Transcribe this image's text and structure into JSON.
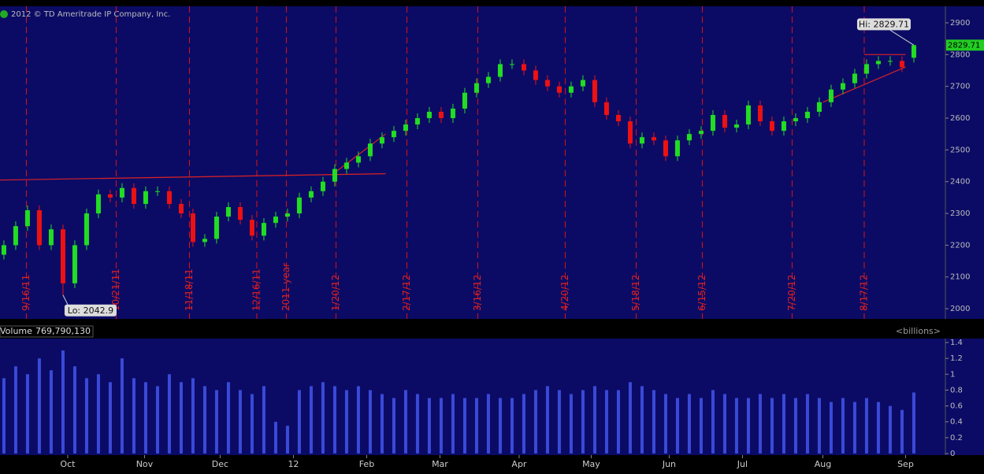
{
  "header": {
    "copyright": "2012 © TD Ameritrade IP Company, Inc."
  },
  "chart_data": [
    {
      "type": "candlestick",
      "x": [
        0,
        1,
        2,
        3,
        4,
        5,
        6,
        7,
        8,
        9,
        10,
        11,
        12,
        13,
        14,
        15,
        16,
        17,
        18,
        19,
        20,
        21,
        22,
        23,
        24,
        25,
        26,
        27,
        28,
        29,
        30,
        31,
        32,
        33,
        34,
        35,
        36,
        37,
        38,
        39,
        40,
        41,
        42,
        43,
        44,
        45,
        46,
        47,
        48,
        49,
        50,
        51,
        52,
        53,
        54,
        55,
        56,
        57,
        58,
        59,
        60,
        61,
        62,
        63,
        64,
        65,
        66,
        67,
        68,
        69,
        70,
        71,
        72,
        73,
        74,
        75,
        76,
        77
      ],
      "open": [
        2170,
        2200,
        2260,
        2310,
        2200,
        2250,
        2080,
        2200,
        2300,
        2360,
        2350,
        2380,
        2330,
        2370,
        2370,
        2330,
        2300,
        2210,
        2220,
        2290,
        2320,
        2280,
        2230,
        2270,
        2290,
        2300,
        2350,
        2370,
        2400,
        2440,
        2460,
        2480,
        2520,
        2540,
        2560,
        2580,
        2600,
        2620,
        2600,
        2630,
        2680,
        2710,
        2730,
        2770,
        2770,
        2750,
        2720,
        2700,
        2680,
        2700,
        2720,
        2650,
        2610,
        2590,
        2520,
        2540,
        2530,
        2480,
        2530,
        2550,
        2560,
        2610,
        2570,
        2580,
        2640,
        2590,
        2560,
        2590,
        2600,
        2620,
        2650,
        2690,
        2710,
        2740,
        2770,
        2780,
        2780,
        2790
      ],
      "high": [
        2215,
        2275,
        2325,
        2325,
        2265,
        2265,
        2215,
        2315,
        2375,
        2375,
        2395,
        2395,
        2385,
        2385,
        2385,
        2345,
        2315,
        2235,
        2305,
        2335,
        2335,
        2295,
        2285,
        2305,
        2315,
        2365,
        2385,
        2415,
        2455,
        2475,
        2495,
        2535,
        2555,
        2575,
        2595,
        2615,
        2635,
        2635,
        2645,
        2695,
        2725,
        2745,
        2785,
        2785,
        2785,
        2765,
        2735,
        2715,
        2715,
        2735,
        2735,
        2665,
        2625,
        2605,
        2555,
        2555,
        2545,
        2545,
        2565,
        2575,
        2625,
        2625,
        2595,
        2655,
        2655,
        2605,
        2605,
        2615,
        2635,
        2665,
        2705,
        2725,
        2755,
        2785,
        2795,
        2795,
        2795,
        2829.71
      ],
      "low": [
        2155,
        2185,
        2245,
        2185,
        2185,
        2042.9,
        2065,
        2185,
        2285,
        2335,
        2335,
        2315,
        2315,
        2355,
        2315,
        2285,
        2195,
        2195,
        2205,
        2275,
        2265,
        2215,
        2215,
        2255,
        2275,
        2285,
        2335,
        2355,
        2385,
        2425,
        2445,
        2465,
        2505,
        2525,
        2545,
        2565,
        2585,
        2585,
        2585,
        2615,
        2665,
        2695,
        2715,
        2755,
        2735,
        2705,
        2685,
        2665,
        2665,
        2685,
        2635,
        2595,
        2575,
        2505,
        2505,
        2515,
        2465,
        2465,
        2515,
        2535,
        2545,
        2555,
        2555,
        2565,
        2575,
        2545,
        2545,
        2575,
        2585,
        2605,
        2635,
        2675,
        2695,
        2725,
        2755,
        2765,
        2745,
        2775
      ],
      "close": [
        2200,
        2260,
        2310,
        2200,
        2250,
        2080,
        2200,
        2300,
        2360,
        2350,
        2380,
        2330,
        2370,
        2370,
        2330,
        2300,
        2210,
        2220,
        2290,
        2320,
        2280,
        2230,
        2270,
        2290,
        2300,
        2350,
        2370,
        2400,
        2440,
        2460,
        2480,
        2520,
        2540,
        2560,
        2580,
        2600,
        2620,
        2600,
        2630,
        2680,
        2710,
        2730,
        2770,
        2770,
        2750,
        2720,
        2700,
        2680,
        2700,
        2720,
        2650,
        2610,
        2590,
        2520,
        2540,
        2530,
        2480,
        2530,
        2550,
        2560,
        2610,
        2570,
        2580,
        2640,
        2590,
        2560,
        2590,
        2600,
        2620,
        2650,
        2690,
        2710,
        2740,
        2770,
        2780,
        2780,
        2760,
        2829.71
      ],
      "up_color": "#22dd22",
      "down_color": "#ee1111",
      "xlim": [
        -0.33,
        79.67
      ],
      "ylim": [
        1968,
        2952
      ],
      "yticks": [
        2000,
        2100,
        2200,
        2300,
        2400,
        2500,
        2600,
        2700,
        2800,
        2900
      ],
      "events": [
        {
          "x": 1.9,
          "label": "9/16/11"
        },
        {
          "x": 9.5,
          "label": "10/21/11"
        },
        {
          "x": 15.7,
          "label": "11/18/11"
        },
        {
          "x": 21.4,
          "label": "12/16/11"
        },
        {
          "x": 23.9,
          "label": "2011 year"
        },
        {
          "x": 28.1,
          "label": "1/20/12"
        },
        {
          "x": 34.1,
          "label": "2/17/12"
        },
        {
          "x": 40.1,
          "label": "3/16/12"
        },
        {
          "x": 47.5,
          "label": "4/20/12"
        },
        {
          "x": 53.5,
          "label": "5/18/12"
        },
        {
          "x": 59.1,
          "label": "6/15/12"
        },
        {
          "x": 66.7,
          "label": "7/20/12"
        },
        {
          "x": 72.8,
          "label": "8/17/12"
        }
      ],
      "trendlines": [
        {
          "x": [
            -0.33,
            32.3
          ],
          "y": [
            2405,
            2425
          ]
        },
        {
          "x": [
            27.7,
            32.3
          ],
          "y": [
            2420,
            2550
          ]
        },
        {
          "x": [
            69.3,
            76.3
          ],
          "y": [
            2650,
            2761
          ]
        },
        {
          "x": [
            72.8,
            76.3
          ],
          "y": [
            2800,
            2800
          ]
        }
      ],
      "hi_label": "Hi: 2829.71",
      "lo_label": "Lo: 2042.9",
      "last_price_label": "2829.71"
    },
    {
      "type": "bar",
      "name": "Volume",
      "readout": "769,790,130",
      "unit_label": "<billions>",
      "color": "#3a4ad8",
      "x": [
        0,
        1,
        2,
        3,
        4,
        5,
        6,
        7,
        8,
        9,
        10,
        11,
        12,
        13,
        14,
        15,
        16,
        17,
        18,
        19,
        20,
        21,
        22,
        23,
        24,
        25,
        26,
        27,
        28,
        29,
        30,
        31,
        32,
        33,
        34,
        35,
        36,
        37,
        38,
        39,
        40,
        41,
        42,
        43,
        44,
        45,
        46,
        47,
        48,
        49,
        50,
        51,
        52,
        53,
        54,
        55,
        56,
        57,
        58,
        59,
        60,
        61,
        62,
        63,
        64,
        65,
        66,
        67,
        68,
        69,
        70,
        71,
        72,
        73,
        74,
        75,
        76,
        77
      ],
      "values": [
        0.95,
        1.1,
        1.0,
        1.2,
        1.05,
        1.3,
        1.1,
        0.95,
        1.0,
        0.9,
        1.2,
        0.95,
        0.9,
        0.85,
        1.0,
        0.9,
        0.95,
        0.85,
        0.8,
        0.9,
        0.8,
        0.75,
        0.85,
        0.4,
        0.35,
        0.8,
        0.85,
        0.9,
        0.85,
        0.8,
        0.85,
        0.8,
        0.75,
        0.7,
        0.8,
        0.75,
        0.7,
        0.7,
        0.75,
        0.7,
        0.7,
        0.75,
        0.7,
        0.7,
        0.75,
        0.8,
        0.85,
        0.8,
        0.75,
        0.8,
        0.85,
        0.8,
        0.8,
        0.9,
        0.85,
        0.8,
        0.75,
        0.7,
        0.75,
        0.7,
        0.8,
        0.75,
        0.7,
        0.7,
        0.75,
        0.7,
        0.75,
        0.7,
        0.75,
        0.7,
        0.65,
        0.7,
        0.65,
        0.7,
        0.65,
        0.6,
        0.55,
        0.76979013
      ],
      "xlim": [
        -0.33,
        79.67
      ],
      "ylim": [
        -0.02,
        1.45
      ],
      "yticks": [
        0,
        0.2,
        0.4,
        0.6,
        0.8,
        1,
        1.2,
        1.4
      ],
      "xticks": [
        {
          "value": 5.4,
          "label": "Oct"
        },
        {
          "value": 11.9,
          "label": "Nov"
        },
        {
          "value": 18.3,
          "label": "Dec"
        },
        {
          "value": 24.5,
          "label": "12"
        },
        {
          "value": 30.7,
          "label": "Feb"
        },
        {
          "value": 36.9,
          "label": "Mar"
        },
        {
          "value": 43.6,
          "label": "Apr"
        },
        {
          "value": 49.7,
          "label": "May"
        },
        {
          "value": 56.3,
          "label": "Jun"
        },
        {
          "value": 62.5,
          "label": "Jul"
        },
        {
          "value": 69.3,
          "label": "Aug"
        },
        {
          "value": 76.3,
          "label": "Sep"
        }
      ]
    }
  ]
}
